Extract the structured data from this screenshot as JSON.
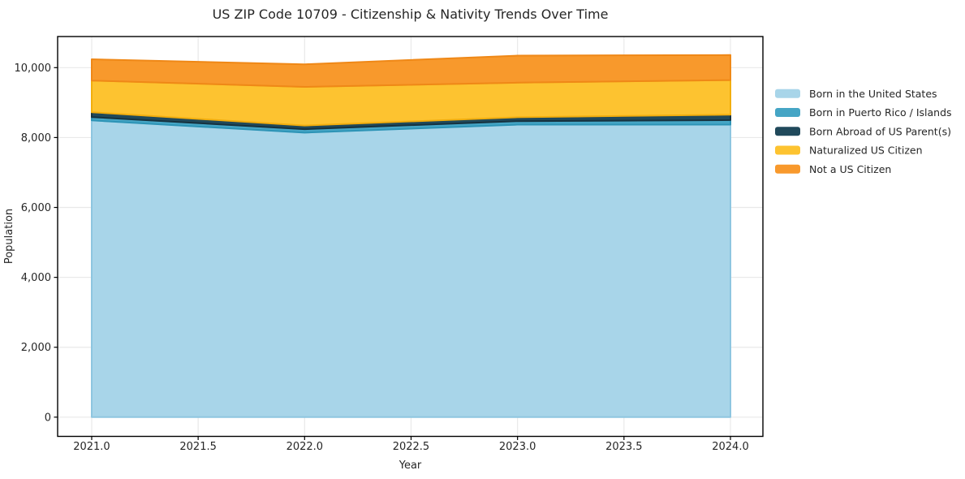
{
  "chart_data": {
    "type": "area",
    "stacked": true,
    "title": "US ZIP Code 10709 - Citizenship & Nativity Trends Over Time",
    "xlabel": "Year",
    "ylabel": "Population",
    "x": [
      2021,
      2022,
      2023,
      2024
    ],
    "series": [
      {
        "name": "Born in the United States",
        "color": "#a8d5e9",
        "edge": "#8ec6e0",
        "values": [
          8490,
          8140,
          8370,
          8370
        ]
      },
      {
        "name": "Born in Puerto Rico / Islands",
        "color": "#45a5c5",
        "edge": "#2d94b6",
        "values": [
          95,
          100,
          100,
          130
        ]
      },
      {
        "name": "Born Abroad of US Parent(s)",
        "color": "#20495b",
        "edge": "#16323f",
        "values": [
          140,
          105,
          110,
          155
        ]
      },
      {
        "name": "Naturalized US Citizen",
        "color": "#fdc330",
        "edge": "#f2ae0e",
        "values": [
          905,
          1105,
          990,
          990
        ]
      },
      {
        "name": "Not a US Citizen",
        "color": "#f8992c",
        "edge": "#ef8817",
        "values": [
          610,
          645,
          775,
          715
        ]
      }
    ],
    "totals": [
      10240,
      10095,
      10345,
      10360
    ],
    "xlim": [
      2020.84,
      2024.1525
    ],
    "ylim": [
      -550,
      10890
    ],
    "xticks": {
      "values": [
        2021,
        2021.5,
        2022,
        2022.5,
        2023,
        2023.5,
        2024
      ],
      "labels": [
        "2021.0",
        "2021.5",
        "2022.0",
        "2022.5",
        "2023.0",
        "2023.5",
        "2024.0"
      ]
    },
    "yticks": {
      "values": [
        0,
        2000,
        4000,
        6000,
        8000,
        10000
      ],
      "labels": [
        "0",
        "2,000",
        "4,000",
        "6,000",
        "8,000",
        "10,000"
      ]
    },
    "grid": true,
    "legend_position": "outside-right",
    "colors": {
      "grid": "#e9e9e9",
      "frame": "#000000",
      "text": "#262626",
      "background": "#ffffff"
    }
  }
}
